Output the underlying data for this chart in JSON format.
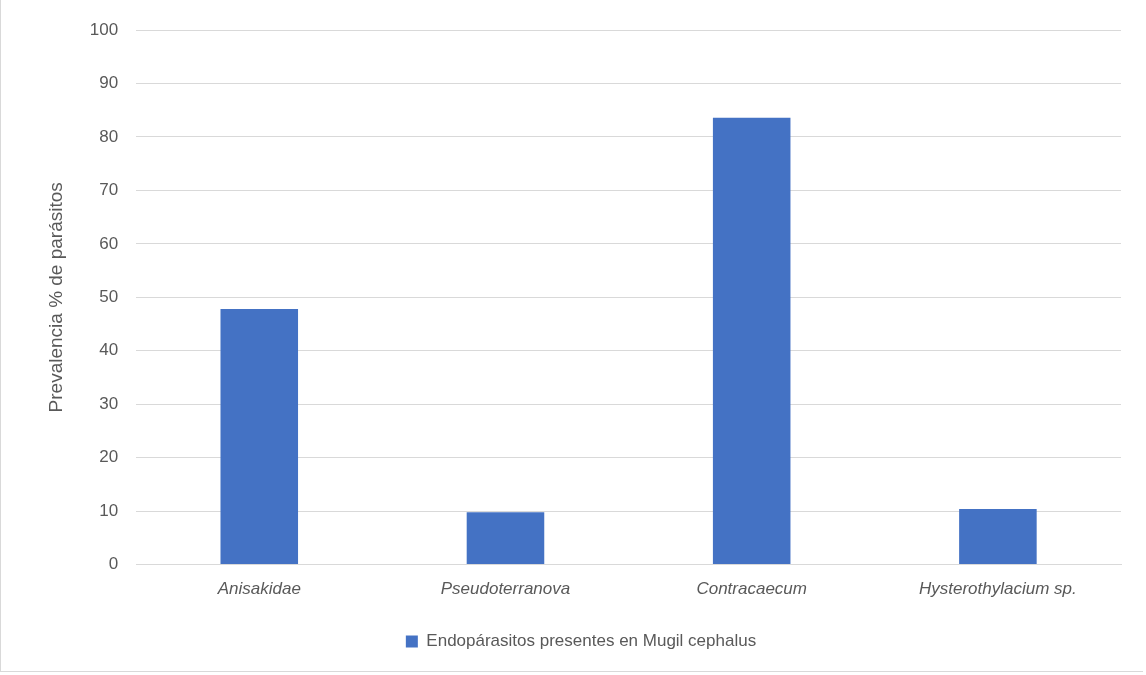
{
  "chart_data": {
    "type": "bar",
    "ylabel": "Prevalencia % de parásitos",
    "categories": [
      "Anisakidae",
      "Pseudoterranova",
      "Contracaecum",
      "Hysterothylacium sp."
    ],
    "series": [
      {
        "name": "Endopárasitos presentes en Mugil cephalus",
        "color": "#4472c4",
        "values": [
          47.8,
          9.8,
          83.6,
          10.4
        ]
      }
    ],
    "ylim": [
      0,
      100
    ],
    "yticks": [
      0,
      10,
      20,
      30,
      40,
      50,
      60,
      70,
      80,
      90,
      100
    ],
    "grid": "y",
    "legend": "bottom"
  }
}
